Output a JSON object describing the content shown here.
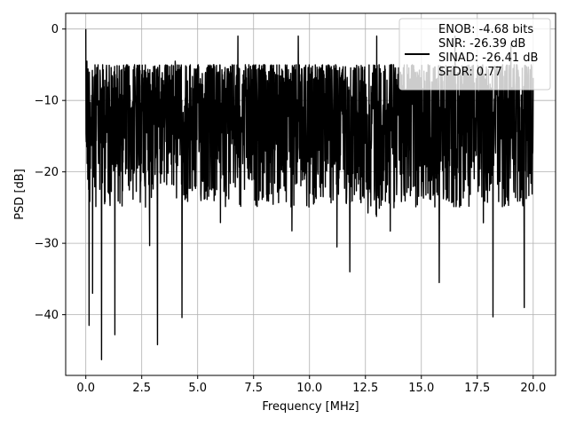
{
  "chart_data": {
    "type": "line",
    "title": "",
    "xlabel": "Frequency [MHz]",
    "ylabel": "PSD [dB]",
    "xlim": [
      -0.9,
      21.0
    ],
    "ylim": [
      -48.5,
      2.2
    ],
    "x_ticks": [
      0.0,
      2.5,
      5.0,
      7.5,
      10.0,
      12.5,
      15.0,
      17.5,
      20.0
    ],
    "x_tick_labels": [
      "0.0",
      "2.5",
      "5.0",
      "7.5",
      "10.0",
      "12.5",
      "15.0",
      "17.5",
      "20.0"
    ],
    "y_ticks": [
      0,
      -10,
      -20,
      -30,
      -40
    ],
    "y_tick_labels": [
      "0",
      "−10",
      "−20",
      "−30",
      "−40"
    ],
    "grid": true,
    "legend_position": "top-right",
    "series": [
      {
        "color": "#000000",
        "x_start": 0.0,
        "x_end": 20.0,
        "num_points": 2048,
        "envelope_upper_approx": -5,
        "envelope_lower_approx": -30,
        "typical_range": [
          -25,
          -5
        ],
        "peaks": [
          {
            "x": 0.0,
            "y": 0.0
          },
          {
            "x": 0.05,
            "y": -4.5
          },
          {
            "x": 0.3,
            "y": -7.0
          },
          {
            "x": 0.65,
            "y": -9.0
          },
          {
            "x": 4.0,
            "y": -4.5
          },
          {
            "x": 6.8,
            "y": -1.0
          },
          {
            "x": 9.5,
            "y": -1.0
          },
          {
            "x": 13.0,
            "y": -1.0
          },
          {
            "x": 16.5,
            "y": -1.0
          },
          {
            "x": 19.0,
            "y": -2.0
          }
        ],
        "dips": [
          {
            "x": 0.15,
            "y": -41.5
          },
          {
            "x": 0.3,
            "y": -37.0
          },
          {
            "x": 0.7,
            "y": -46.3
          },
          {
            "x": 1.3,
            "y": -42.8
          },
          {
            "x": 3.2,
            "y": -44.2
          },
          {
            "x": 4.3,
            "y": -40.4
          },
          {
            "x": 11.8,
            "y": -34.0
          },
          {
            "x": 15.8,
            "y": -35.5
          },
          {
            "x": 18.2,
            "y": -40.3
          },
          {
            "x": 19.6,
            "y": -39.0
          }
        ]
      }
    ],
    "legend": {
      "line_color": "#000000",
      "lines": [
        "ENOB: -4.68 bits",
        "SNR: -26.39 dB",
        "SINAD: -26.41 dB",
        "SFDR: 0.77"
      ]
    }
  }
}
